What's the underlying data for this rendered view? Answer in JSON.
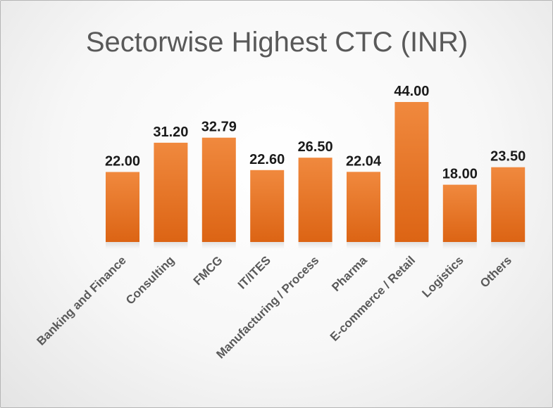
{
  "chart_data": {
    "type": "bar",
    "title": "Sectorwise Highest CTC (INR)",
    "categories": [
      "Banking and Finance",
      "Consulting",
      "FMCG",
      "IT/ITES",
      "Manufacturing / Process",
      "Pharma",
      "E-commerce / Retail",
      "Logistics",
      "Others"
    ],
    "values": [
      22.0,
      31.2,
      32.79,
      22.6,
      26.5,
      22.04,
      44.0,
      18.0,
      23.5
    ],
    "value_labels": [
      "22.00",
      "31.20",
      "32.79",
      "22.60",
      "26.50",
      "22.04",
      "44.00",
      "18.00",
      "23.50"
    ],
    "xlabel": "",
    "ylabel": "",
    "ylim": [
      0,
      44
    ],
    "grid": false,
    "legend": "none",
    "bar_color": "#ED7D31"
  }
}
